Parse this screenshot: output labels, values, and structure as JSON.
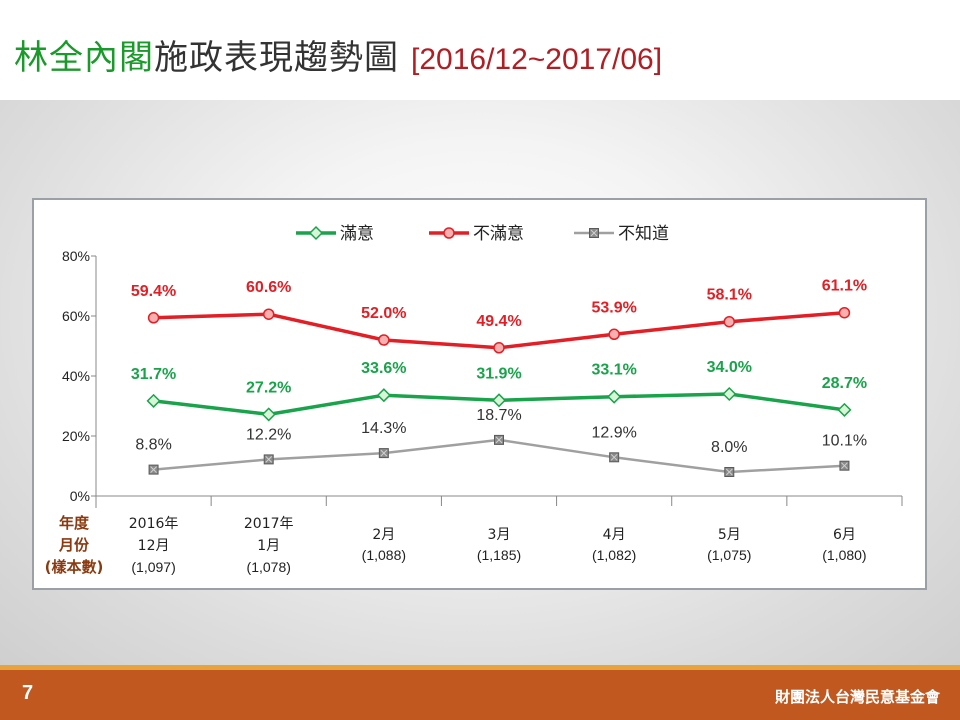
{
  "title": {
    "part1": "林全內閣",
    "part2": "施政表現趨勢圖",
    "range": "[2016/12~2017/06]"
  },
  "colors": {
    "satisfied": "#19a34a",
    "dissatisfied": "#e31e24",
    "unknown": "#a0a0a0",
    "title_green": "#1a9a2a",
    "row_label": "#8b3a10",
    "footer": "#c0581f"
  },
  "footer": {
    "page_number": "7",
    "organization": "財團法人台灣民意基金會"
  },
  "chart_data": {
    "type": "line",
    "title": "",
    "ylim": [
      0,
      80
    ],
    "yticks": [
      "0%",
      "20%",
      "40%",
      "60%",
      "80%"
    ],
    "grid": false,
    "legend_position": "top",
    "row_labels": [
      "年度",
      "月份",
      "(樣本數)"
    ],
    "categories": [
      {
        "year": "2016年",
        "month": "12月",
        "sample": "(1,097)"
      },
      {
        "year": "2017年",
        "month": "1月",
        "sample": "(1,078)"
      },
      {
        "year": "",
        "month": "2月",
        "sample": "(1,088)"
      },
      {
        "year": "",
        "month": "3月",
        "sample": "(1,185)"
      },
      {
        "year": "",
        "month": "4月",
        "sample": "(1,082)"
      },
      {
        "year": "",
        "month": "5月",
        "sample": "(1,075)"
      },
      {
        "year": "",
        "month": "6月",
        "sample": "(1,080)"
      }
    ],
    "series": [
      {
        "name": "滿意",
        "values": [
          31.7,
          27.2,
          33.6,
          31.9,
          33.1,
          34.0,
          28.7
        ],
        "labels": [
          "31.7%",
          "27.2%",
          "33.6%",
          "31.9%",
          "33.1%",
          "34.0%",
          "28.7%"
        ]
      },
      {
        "name": "不滿意",
        "values": [
          59.4,
          60.6,
          52.0,
          49.4,
          53.9,
          58.1,
          61.1
        ],
        "labels": [
          "59.4%",
          "60.6%",
          "52.0%",
          "49.4%",
          "53.9%",
          "58.1%",
          "61.1%"
        ]
      },
      {
        "name": "不知道",
        "values": [
          8.8,
          12.2,
          14.3,
          18.7,
          12.9,
          8.0,
          10.1
        ],
        "labels": [
          "8.8%",
          "12.2%",
          "14.3%",
          "18.7%",
          "12.9%",
          "8.0%",
          "10.1%"
        ]
      }
    ]
  }
}
